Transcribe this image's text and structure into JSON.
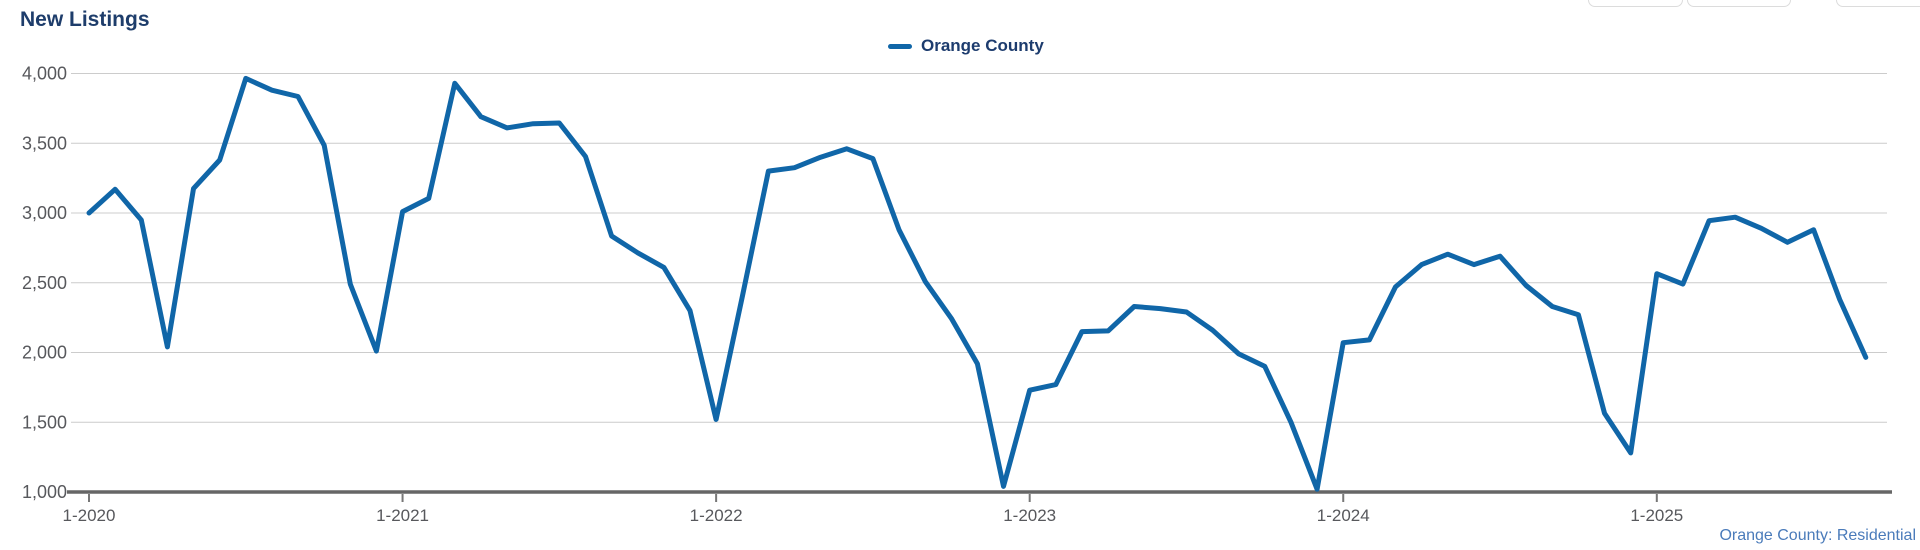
{
  "page": {
    "title": "New Listings",
    "footer_link_label": "Orange County: Residential"
  },
  "chart_data": {
    "type": "line",
    "title": "New Listings",
    "grid": true,
    "legend_position": "top-center",
    "line_color": "#1066A8",
    "grid_color": "#cccccc",
    "axis_color": "#666666",
    "label_color": "#57585c",
    "ylim": [
      1000,
      4000
    ],
    "y_ticks": [
      {
        "value": 4000,
        "label": "4,000"
      },
      {
        "value": 3500,
        "label": "3,500"
      },
      {
        "value": 3000,
        "label": "3,000"
      },
      {
        "value": 2500,
        "label": "2,500"
      },
      {
        "value": 2000,
        "label": "2,000"
      },
      {
        "value": 1500,
        "label": "1,500"
      },
      {
        "value": 1000,
        "label": "1,000"
      }
    ],
    "x_ticks": [
      {
        "label": "1-2020",
        "month_index": 0
      },
      {
        "label": "1-2021",
        "month_index": 12
      },
      {
        "label": "1-2022",
        "month_index": 24
      },
      {
        "label": "1-2023",
        "month_index": 36
      },
      {
        "label": "1-2024",
        "month_index": 48
      },
      {
        "label": "1-2025",
        "month_index": 60
      }
    ],
    "series": [
      {
        "name": "Orange County",
        "start": "1-2020",
        "frequency": "monthly",
        "values": [
          3000,
          3170,
          2950,
          2040,
          3175,
          3380,
          3965,
          3880,
          3835,
          3485,
          2490,
          2010,
          3010,
          3105,
          3930,
          3690,
          3610,
          3640,
          3645,
          3405,
          2835,
          2715,
          2610,
          2300,
          1520,
          2400,
          3300,
          3325,
          3400,
          3460,
          3390,
          2880,
          2510,
          2245,
          1920,
          1040,
          1730,
          1770,
          2150,
          2155,
          2330,
          2315,
          2290,
          2160,
          1990,
          1900,
          1500,
          1020,
          2070,
          2090,
          2470,
          2630,
          2705,
          2630,
          2690,
          2480,
          2330,
          2270,
          1565,
          1280,
          2565,
          2490,
          2945,
          2970,
          2890,
          2790,
          2880,
          2380,
          1965
        ]
      }
    ],
    "footer": "Orange County: Residential"
  }
}
